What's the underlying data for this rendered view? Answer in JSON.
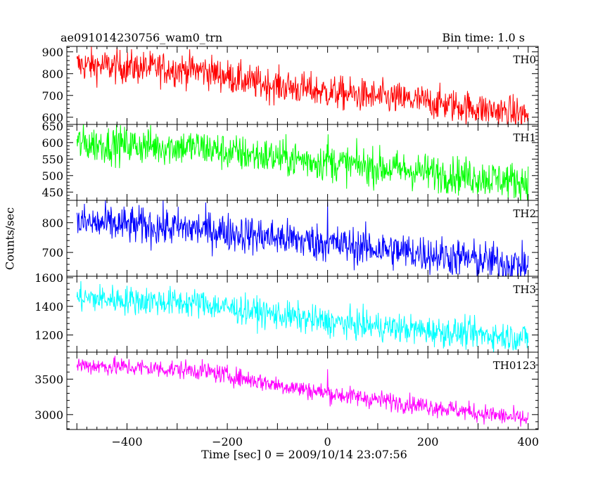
{
  "header": {
    "title": "ae091014230756_wam0_trn",
    "bin_time": "Bin time: 1.0 s"
  },
  "chart_data": {
    "type": "line",
    "xlabel": "Time [sec] 0 = 2009/10/14 23:07:56",
    "ylabel": "Counts/sec",
    "xlim": [
      -520,
      420
    ],
    "x_ticks": [
      -400,
      -200,
      0,
      200,
      400
    ],
    "x_tick_labels": [
      "−400",
      "−200",
      "0",
      "200",
      "400"
    ],
    "x_range_data": [
      -500,
      400
    ],
    "bin_time_s": 1.0,
    "panels": [
      {
        "label": "TH0",
        "color": "#ff0000",
        "ylim": [
          567,
          925
        ],
        "yticks": [
          600,
          700,
          800,
          900
        ],
        "trend": [
          [
            -500,
            840
          ],
          [
            -250,
            815
          ],
          [
            -150,
            760
          ],
          [
            0,
            715
          ],
          [
            200,
            670
          ],
          [
            400,
            610
          ]
        ],
        "noise": 38,
        "spikes": []
      },
      {
        "label": "TH1",
        "color": "#00ff00",
        "ylim": [
          425,
          655
        ],
        "yticks": [
          450,
          500,
          550,
          600,
          650
        ],
        "trend": [
          [
            -500,
            597
          ],
          [
            -250,
            585
          ],
          [
            -200,
            570
          ],
          [
            0,
            540
          ],
          [
            200,
            510
          ],
          [
            400,
            480
          ]
        ],
        "noise": 28,
        "spikes": [
          [
            1,
            625
          ]
        ]
      },
      {
        "label": "TH2",
        "color": "#0000ff",
        "ylim": [
          620,
          875
        ],
        "yticks": [
          700,
          800
        ],
        "trend": [
          [
            -500,
            800
          ],
          [
            -250,
            778
          ],
          [
            0,
            730
          ],
          [
            200,
            695
          ],
          [
            400,
            655
          ]
        ],
        "noise": 32,
        "spikes": [
          [
            0,
            870
          ]
        ]
      },
      {
        "label": "TH3",
        "color": "#00ffff",
        "ylim": [
          1080,
          1610
        ],
        "yticks": [
          1200,
          1400,
          1600
        ],
        "trend": [
          [
            -500,
            1460
          ],
          [
            -250,
            1420
          ],
          [
            -200,
            1390
          ],
          [
            0,
            1290
          ],
          [
            200,
            1230
          ],
          [
            400,
            1180
          ]
        ],
        "noise": 50,
        "spikes": []
      },
      {
        "label": "TH0123",
        "color": "#ff00ff",
        "ylim": [
          2790,
          3880
        ],
        "yticks": [
          3000,
          3500
        ],
        "trend": [
          [
            -500,
            3700
          ],
          [
            -250,
            3620
          ],
          [
            -100,
            3420
          ],
          [
            0,
            3300
          ],
          [
            200,
            3120
          ],
          [
            400,
            2930
          ]
        ],
        "noise": 65,
        "spikes": [
          [
            0,
            3640
          ]
        ]
      }
    ]
  }
}
